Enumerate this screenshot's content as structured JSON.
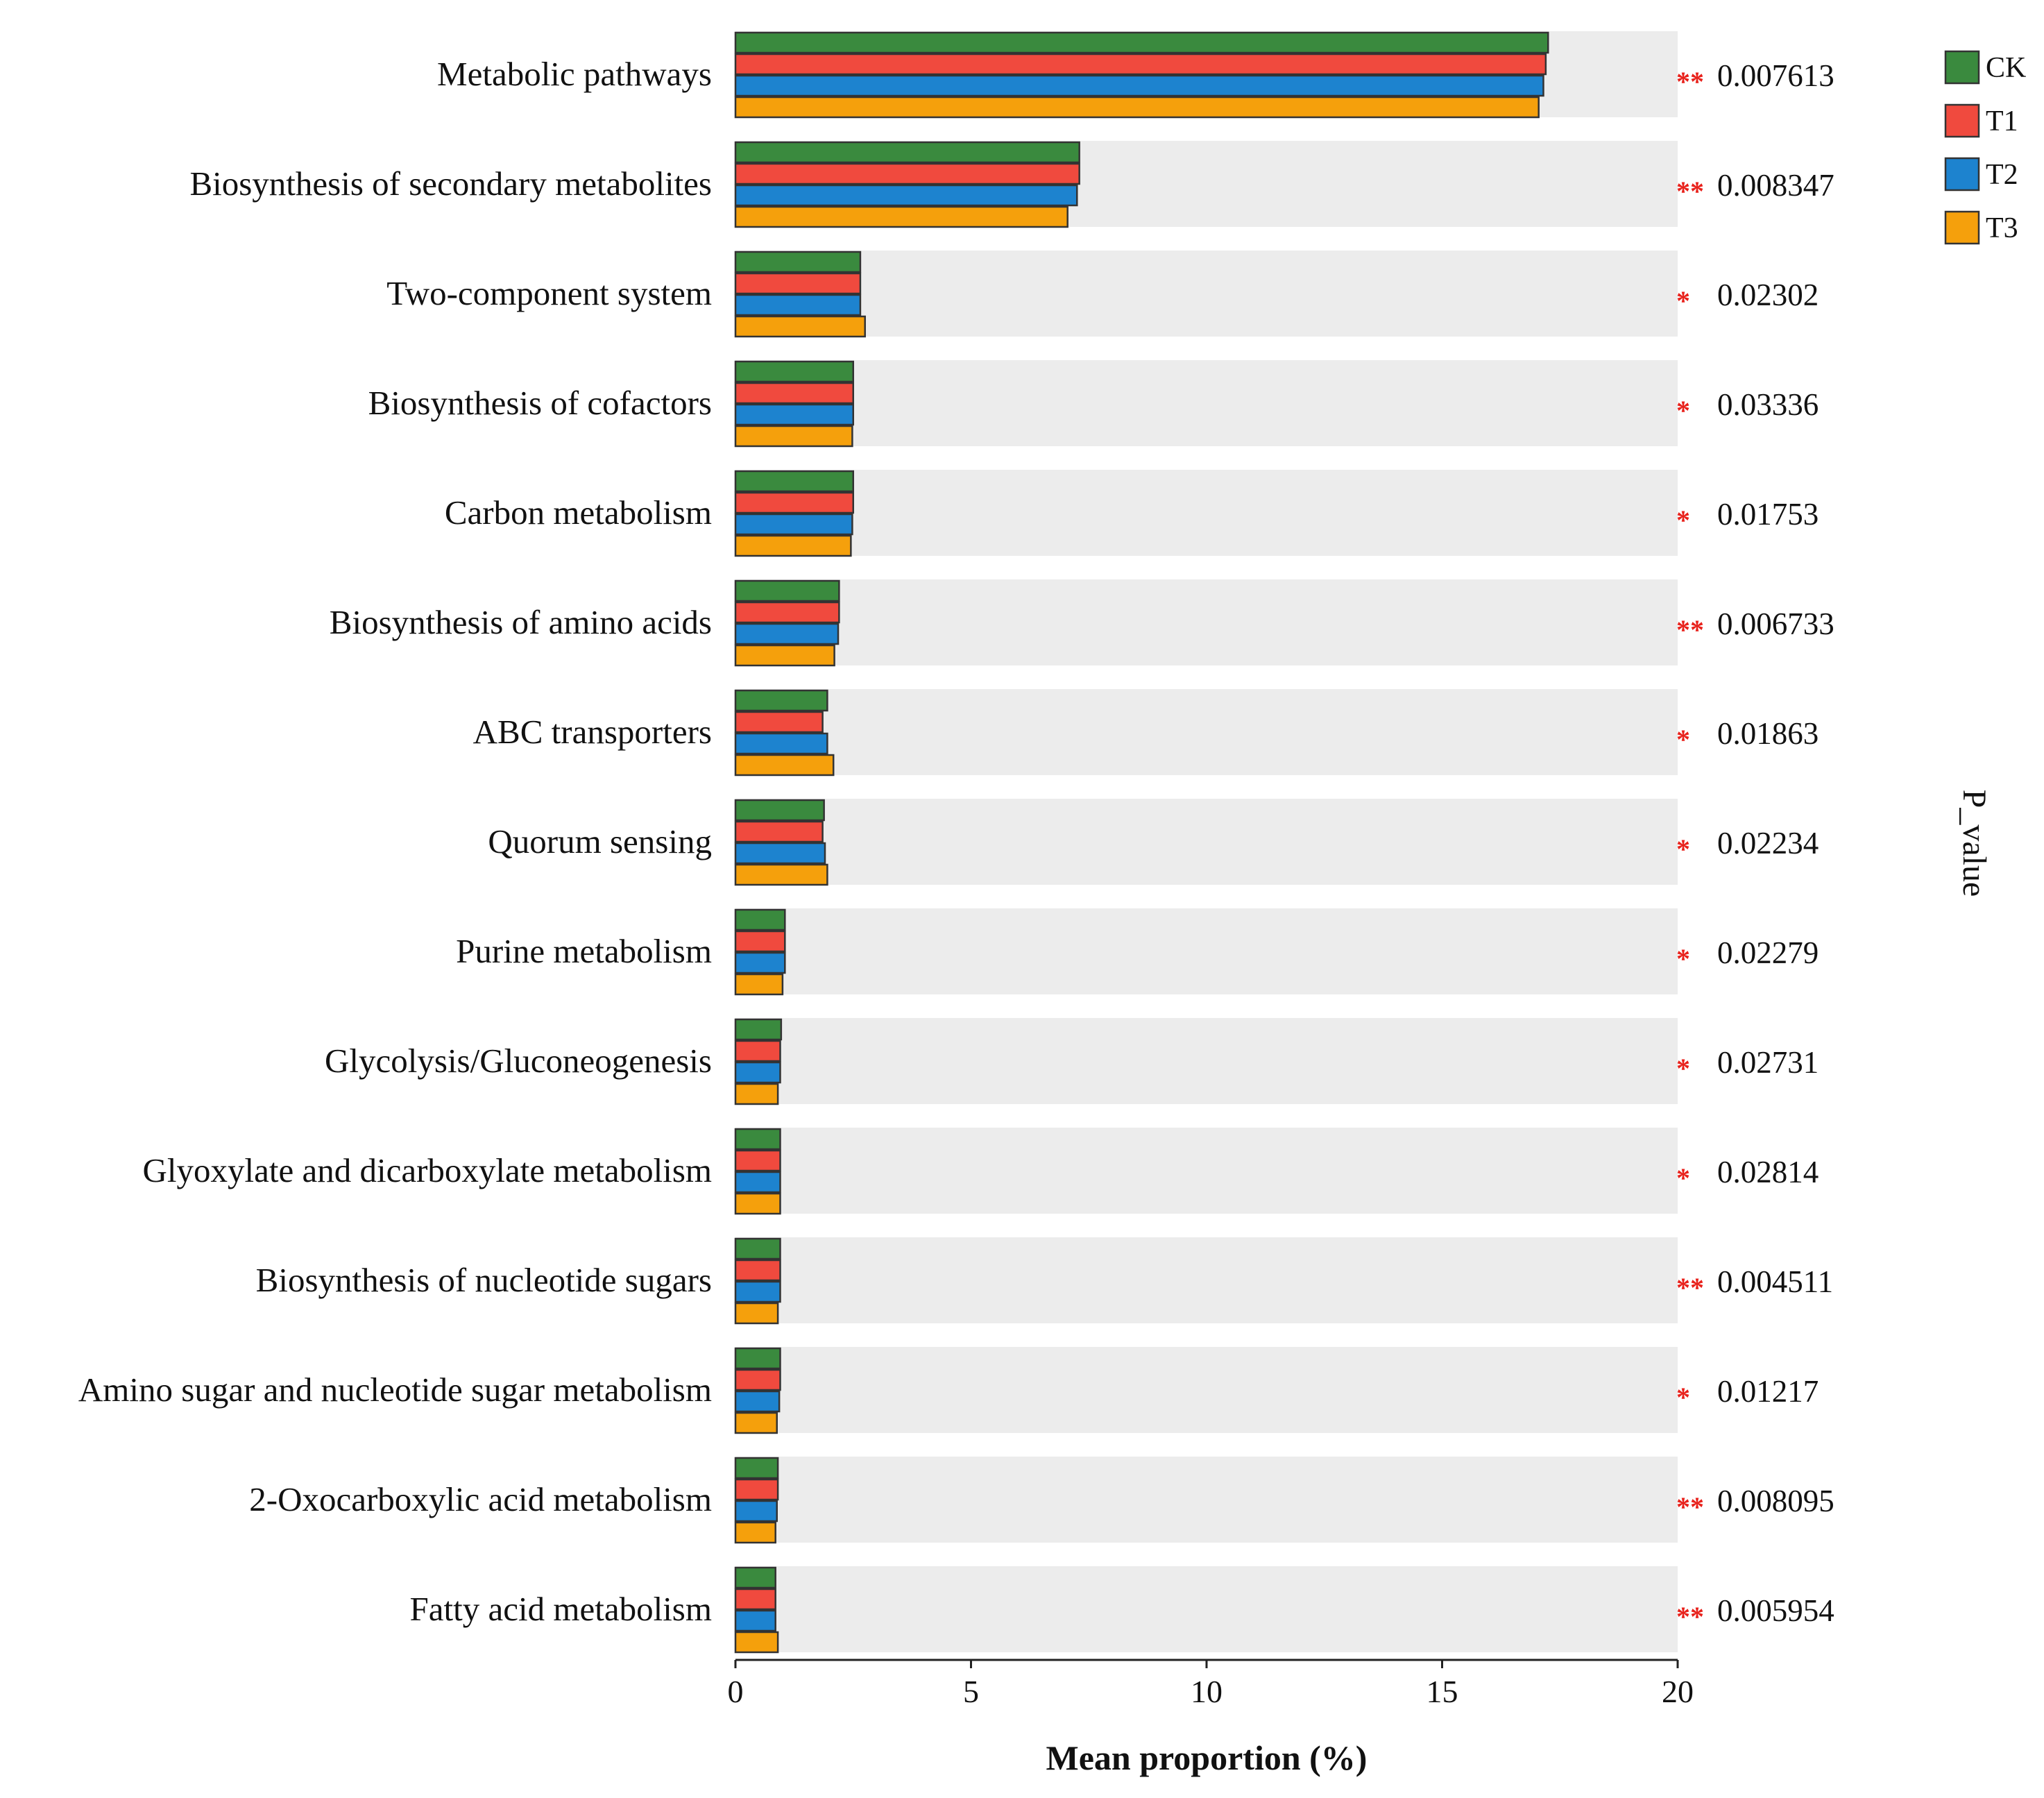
{
  "chart_data": {
    "type": "bar",
    "orientation": "horizontal",
    "xlabel": "Mean proportion (%)",
    "side_label": "P_value",
    "xlim": [
      0,
      20
    ],
    "xticks": [
      0,
      5,
      10,
      15,
      20
    ],
    "categories": [
      "Metabolic pathways",
      "Biosynthesis of secondary metabolites",
      "Two-component system",
      "Biosynthesis of cofactors",
      "Carbon metabolism",
      "Biosynthesis of amino acids",
      "ABC transporters",
      "Quorum sensing",
      "Purine metabolism",
      "Glycolysis/Gluconeogenesis",
      "Glyoxylate and dicarboxylate metabolism",
      "Biosynthesis of nucleotide sugars",
      "Amino sugar and nucleotide sugar metabolism",
      "2-Oxocarboxylic acid metabolism",
      "Fatty acid metabolism"
    ],
    "series": [
      {
        "name": "CK",
        "color": "#3a8a3e",
        "values": [
          17.25,
          7.3,
          2.65,
          2.5,
          2.5,
          2.2,
          1.95,
          1.88,
          1.05,
          0.97,
          0.95,
          0.95,
          0.95,
          0.9,
          0.85
        ]
      },
      {
        "name": "T1",
        "color": "#f04a3e",
        "values": [
          17.2,
          7.3,
          2.65,
          2.5,
          2.5,
          2.2,
          1.85,
          1.85,
          1.05,
          0.95,
          0.95,
          0.95,
          0.95,
          0.9,
          0.85
        ]
      },
      {
        "name": "T2",
        "color": "#1d83cf",
        "values": [
          17.15,
          7.25,
          2.65,
          2.5,
          2.48,
          2.18,
          1.95,
          1.9,
          1.05,
          0.95,
          0.95,
          0.95,
          0.93,
          0.88,
          0.85
        ]
      },
      {
        "name": "T3",
        "color": "#f5a00c",
        "values": [
          17.05,
          7.05,
          2.75,
          2.48,
          2.45,
          2.1,
          2.08,
          1.95,
          1.0,
          0.9,
          0.95,
          0.9,
          0.88,
          0.85,
          0.9
        ]
      }
    ],
    "significance": [
      "**",
      "**",
      "*",
      "*",
      "*",
      "**",
      "*",
      "*",
      "*",
      "*",
      "*",
      "**",
      "*",
      "**",
      "**"
    ],
    "p_values": [
      "0.007613",
      "0.008347",
      "0.02302",
      "0.03336",
      "0.01753",
      "0.006733",
      "0.01863",
      "0.02234",
      "0.02279",
      "0.02731",
      "0.02814",
      "0.004511",
      "0.01217",
      "0.008095",
      "0.005954"
    ],
    "legend_position": "top-right",
    "colors": {
      "row_background": "#ececec",
      "star": "#e8211b",
      "bar_outline": "#333333"
    }
  }
}
